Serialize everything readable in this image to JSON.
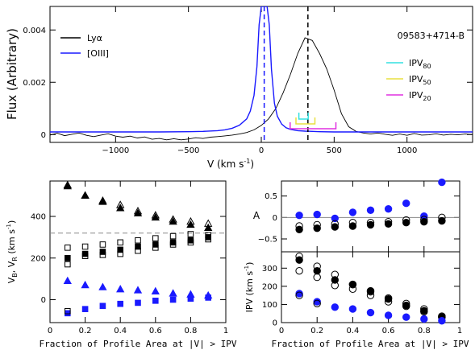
{
  "chart_data": [
    {
      "type": "line",
      "ylabel": "Flux (Arbitrary)",
      "xlabel": "V (km s",
      "xlabel_sup": "-1",
      "xlabel_close": ")",
      "xlim": [
        -1450,
        1450
      ],
      "ylim": [
        -0.0003,
        0.0049
      ],
      "xticks": [
        -1000,
        -500,
        0,
        500,
        1000
      ],
      "xtick_labels": [
        "−1000",
        "−500",
        "0",
        "500",
        "1000"
      ],
      "yticks": [
        0,
        0.002,
        0.004
      ],
      "ytick_labels": [
        "0",
        "0.002",
        "0.004"
      ],
      "object_label": "09583+4714-B",
      "legend": [
        {
          "name": "Lyα",
          "color": "#000000"
        },
        {
          "name": "[OIII]",
          "color": "#1a1aff"
        }
      ],
      "ipv_legend": [
        {
          "name": "IPV",
          "sub": "80",
          "color": "#33e0e0"
        },
        {
          "name": "IPV",
          "sub": "50",
          "color": "#e8e040"
        },
        {
          "name": "IPV",
          "sub": "20",
          "color": "#e030e0"
        }
      ],
      "vlines": [
        {
          "x": 20,
          "color": "#1a1aff",
          "style": "dashed"
        },
        {
          "x": 320,
          "color": "#000000",
          "style": "dashed"
        }
      ],
      "ipv_brackets": [
        {
          "level": "80",
          "x1": 258,
          "x2": 322,
          "color": "#33e0e0"
        },
        {
          "level": "50",
          "x1": 238,
          "x2": 368,
          "color": "#e8e040"
        },
        {
          "level": "20",
          "x1": 198,
          "x2": 512,
          "color": "#e030e0"
        }
      ],
      "series": [
        {
          "name": "Lyα",
          "color": "#000000",
          "x": [
            -1450,
            -1400,
            -1350,
            -1300,
            -1250,
            -1200,
            -1150,
            -1100,
            -1050,
            -1000,
            -950,
            -900,
            -850,
            -800,
            -750,
            -700,
            -650,
            -600,
            -550,
            -500,
            -450,
            -400,
            -350,
            -300,
            -250,
            -200,
            -150,
            -100,
            -50,
            0,
            50,
            100,
            150,
            200,
            250,
            300,
            350,
            400,
            450,
            500,
            550,
            600,
            650,
            700,
            750,
            800,
            850,
            900,
            950,
            1000,
            1050,
            1100,
            1150,
            1200,
            1250,
            1300,
            1350,
            1400,
            1450
          ],
          "y": [
            -2e-05,
            5e-05,
            -4e-05,
            1e-05,
            6e-05,
            -3e-05,
            -8e-05,
            -2e-05,
            3e-05,
            -6e-05,
            -0.0001,
            -6e-05,
            -0.00013,
            -9e-05,
            -0.00018,
            -0.00015,
            -0.0002,
            -0.00016,
            -0.0002,
            -0.00017,
            -0.00012,
            -0.00015,
            -0.0001,
            -8e-05,
            -5e-05,
            -2e-05,
            2e-05,
            8e-05,
            0.00018,
            0.00035,
            0.0006,
            0.001,
            0.0016,
            0.0023,
            0.0031,
            0.0037,
            0.0036,
            0.0031,
            0.0025,
            0.0017,
            0.0008,
            0.0003,
            0.00012,
            6e-05,
            2e-05,
            6e-05,
            1e-05,
            -3e-05,
            2e-05,
            -3e-05,
            4e-05,
            -2e-05,
            -1e-05,
            3e-05,
            -2e-05,
            1e-05,
            -1e-05,
            2e-05,
            0.0
          ]
        },
        {
          "name": "[OIII]",
          "color": "#1a1aff",
          "x": [
            -1450,
            -1300,
            -1100,
            -900,
            -700,
            -500,
            -400,
            -300,
            -250,
            -200,
            -150,
            -100,
            -75,
            -50,
            -30,
            -15,
            0,
            20,
            40,
            55,
            70,
            90,
            110,
            140,
            170,
            200,
            250,
            300,
            400,
            500,
            600,
            700,
            800,
            900,
            1000,
            1100,
            1200,
            1300,
            1450
          ],
          "y": [
            0.0001,
            0.0001,
            0.0001,
            0.0001,
            0.0001,
            0.00011,
            0.00012,
            0.00015,
            0.00018,
            0.00024,
            0.00036,
            0.0006,
            0.0009,
            0.0015,
            0.0026,
            0.0042,
            0.0049,
            0.0049,
            0.0049,
            0.0042,
            0.0025,
            0.0012,
            0.0007,
            0.0004,
            0.00026,
            0.0002,
            0.00015,
            0.00013,
            0.00011,
            0.0001,
            0.0001,
            0.0001,
            0.0001,
            0.0001,
            0.0001,
            0.0001,
            0.0001,
            0.0001,
            0.0001
          ]
        }
      ]
    },
    {
      "type": "scatter",
      "ylabel": "V",
      "ylabel_sub1": "B",
      "ylabel_mid": ", V",
      "ylabel_sub2": "R",
      "ylabel_end": " (km s",
      "ylabel_sup": "-1",
      "ylabel_close": ")",
      "xlabel": "Fraction of Profile Area at |V| > IPV",
      "xlim": [
        0,
        1
      ],
      "ylim": [
        -110,
        570
      ],
      "xticks": [
        0,
        0.2,
        0.4,
        0.6,
        0.8,
        1
      ],
      "xtick_labels": [
        "0",
        "0.2",
        "0.4",
        "0.6",
        "0.8",
        "1"
      ],
      "yticks": [
        0,
        200,
        400
      ],
      "ytick_labels": [
        "0",
        "200",
        "400"
      ],
      "hline": {
        "y": 320,
        "style": "dashed",
        "color": "#888888"
      },
      "series": [
        {
          "name": "",
          "marker": "triangle",
          "fill": "black",
          "x": [
            0.1,
            0.2,
            0.3,
            0.4,
            0.5,
            0.6,
            0.7,
            0.8,
            0.9
          ],
          "y": [
            545,
            500,
            470,
            440,
            415,
            395,
            375,
            360,
            345
          ]
        },
        {
          "name": "",
          "marker": "triangle",
          "fill": "open",
          "x": [
            0.1,
            0.2,
            0.3,
            0.4,
            0.5,
            0.6,
            0.7,
            0.8,
            0.9
          ],
          "y": [
            550,
            500,
            475,
            455,
            425,
            405,
            385,
            375,
            365
          ]
        },
        {
          "name": "",
          "marker": "square",
          "fill": "black",
          "x": [
            0.1,
            0.2,
            0.3,
            0.4,
            0.5,
            0.6,
            0.7,
            0.8,
            0.9
          ],
          "y": [
            200,
            220,
            230,
            240,
            255,
            265,
            275,
            285,
            300
          ]
        },
        {
          "name": "",
          "marker": "square",
          "fill": "open",
          "x": [
            0.1,
            0.2,
            0.3,
            0.4,
            0.5,
            0.6,
            0.7,
            0.8,
            0.9
          ],
          "y": [
            250,
            255,
            265,
            275,
            285,
            295,
            305,
            315,
            310
          ]
        },
        {
          "name": "",
          "marker": "square",
          "fill": "open",
          "x": [
            0.1,
            0.2,
            0.3,
            0.4,
            0.5,
            0.6,
            0.7,
            0.8,
            0.9
          ],
          "y": [
            170,
            210,
            215,
            220,
            235,
            250,
            265,
            275,
            290
          ]
        },
        {
          "name": "",
          "marker": "triangle",
          "fill": "blue",
          "x": [
            0.1,
            0.2,
            0.3,
            0.4,
            0.5,
            0.6,
            0.7,
            0.8,
            0.9
          ],
          "y": [
            90,
            70,
            60,
            50,
            45,
            40,
            30,
            25,
            20
          ]
        },
        {
          "name": "",
          "marker": "square",
          "fill": "blue",
          "x": [
            0.1,
            0.2,
            0.3,
            0.4,
            0.5,
            0.6,
            0.7,
            0.8,
            0.9
          ],
          "y": [
            -65,
            -45,
            -30,
            -20,
            -15,
            -5,
            0,
            5,
            10
          ]
        },
        {
          "name": "",
          "marker": "square",
          "fill": "open",
          "x": [
            0.1
          ],
          "y": [
            -55
          ]
        }
      ]
    },
    {
      "type": "scatter",
      "ylabel": "A",
      "xlim": [
        0,
        1
      ],
      "ylim": [
        -0.8,
        0.85
      ],
      "xticks": [
        0,
        0.2,
        0.4,
        0.6,
        0.8,
        1
      ],
      "yticks": [
        -0.5,
        0,
        0.5
      ],
      "ytick_labels": [
        "−0.5",
        "0",
        "0.5"
      ],
      "hline": {
        "y": 0,
        "style": "solid",
        "color": "#888888"
      },
      "series": [
        {
          "name": "",
          "marker": "circle",
          "fill": "blue",
          "x": [
            0.1,
            0.2,
            0.3,
            0.4,
            0.5,
            0.6,
            0.7,
            0.8,
            0.9
          ],
          "y": [
            0.05,
            0.07,
            -0.02,
            0.12,
            0.17,
            0.2,
            0.33,
            0.03,
            0.82
          ]
        },
        {
          "name": "",
          "marker": "circle",
          "fill": "black",
          "x": [
            0.1,
            0.2,
            0.3,
            0.4,
            0.5,
            0.6,
            0.7,
            0.8,
            0.9
          ],
          "y": [
            -0.28,
            -0.25,
            -0.22,
            -0.2,
            -0.17,
            -0.15,
            -0.12,
            -0.1,
            -0.08
          ]
        },
        {
          "name": "",
          "marker": "circle",
          "fill": "open",
          "x": [
            0.1,
            0.2,
            0.3,
            0.4,
            0.5,
            0.6,
            0.7,
            0.8,
            0.9
          ],
          "y": [
            -0.2,
            -0.17,
            -0.15,
            -0.12,
            -0.12,
            -0.1,
            -0.06,
            -0.05,
            0.0
          ]
        }
      ]
    },
    {
      "type": "scatter",
      "ylabel": "IPV (km s",
      "ylabel_sup": "-1",
      "ylabel_close": ")",
      "xlabel": "Fraction of Profile Area at |V| > IPV",
      "xlim": [
        0,
        1
      ],
      "ylim": [
        0,
        390
      ],
      "xticks": [
        0,
        0.2,
        0.4,
        0.6,
        0.8,
        1
      ],
      "xtick_labels": [
        "0",
        "0.2",
        "0.4",
        "0.6",
        "0.8",
        "1"
      ],
      "yticks": [
        0,
        100,
        200,
        300
      ],
      "ytick_labels": [
        "0",
        "100",
        "200",
        "300"
      ],
      "series": [
        {
          "name": "",
          "marker": "circle",
          "fill": "open",
          "x": [
            0.1,
            0.2,
            0.3,
            0.4,
            0.5,
            0.6,
            0.7,
            0.8,
            0.9
          ],
          "y": [
            365,
            310,
            265,
            210,
            170,
            135,
            105,
            75,
            35
          ]
        },
        {
          "name": "",
          "marker": "circle",
          "fill": "black",
          "x": [
            0.1,
            0.2,
            0.3,
            0.4,
            0.5,
            0.6,
            0.7,
            0.8,
            0.9
          ],
          "y": [
            345,
            285,
            235,
            210,
            175,
            130,
            95,
            65,
            30
          ]
        },
        {
          "name": "",
          "marker": "circle",
          "fill": "open",
          "x": [
            0.1,
            0.2,
            0.3,
            0.4,
            0.5,
            0.6,
            0.7,
            0.8,
            0.9
          ],
          "y": [
            285,
            250,
            205,
            185,
            150,
            115,
            90,
            60,
            30
          ]
        },
        {
          "name": "",
          "marker": "circle",
          "fill": "blue",
          "x": [
            0.1,
            0.2,
            0.3,
            0.4,
            0.5,
            0.6,
            0.7,
            0.8,
            0.9
          ],
          "y": [
            160,
            115,
            85,
            75,
            55,
            40,
            30,
            20,
            10
          ]
        },
        {
          "name": "",
          "marker": "circle",
          "fill": "open",
          "x": [
            0.1,
            0.2
          ],
          "y": [
            150,
            105
          ]
        }
      ]
    }
  ]
}
